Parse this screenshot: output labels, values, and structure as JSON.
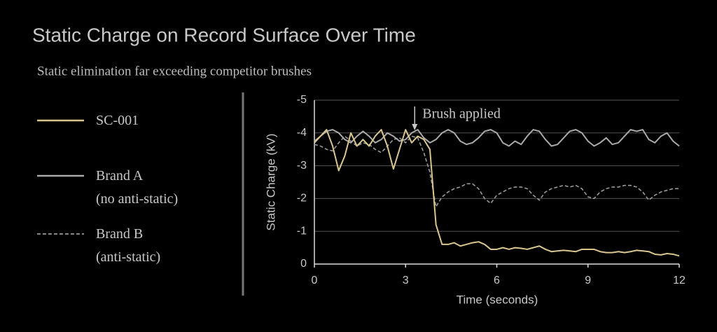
{
  "chart_data": {
    "type": "line",
    "title": "Static Charge on Record Surface Over Time",
    "subtitle": "Static elimination far exceeding competitor brushes",
    "x_label": "Time (seconds)",
    "y_label": "Static Charge (kV)",
    "x": [
      0,
      0.2,
      0.4,
      0.6,
      0.8,
      1,
      1.2,
      1.4,
      1.6,
      1.8,
      2,
      2.2,
      2.4,
      2.6,
      2.8,
      3,
      3.2,
      3.4,
      3.6,
      3.8,
      4,
      4.2,
      4.4,
      4.6,
      4.8,
      5,
      5.2,
      5.4,
      5.6,
      5.8,
      6,
      6.2,
      6.4,
      6.6,
      6.8,
      7,
      7.2,
      7.4,
      7.6,
      7.8,
      8,
      8.2,
      8.4,
      8.6,
      8.8,
      9,
      9.2,
      9.4,
      9.6,
      9.8,
      10,
      10.2,
      10.4,
      10.6,
      10.8,
      11,
      11.2,
      11.4,
      11.6,
      11.8,
      12
    ],
    "series": [
      {
        "name": "SC-001",
        "color": "#d9c68f",
        "line_style": "solid",
        "values": [
          -3.7,
          -3.9,
          -4.1,
          -3.6,
          -2.85,
          -3.3,
          -4.0,
          -3.6,
          -3.8,
          -3.6,
          -3.9,
          -4.1,
          -3.6,
          -2.9,
          -3.5,
          -4.1,
          -3.7,
          -3.9,
          -3.8,
          -3.5,
          -1.2,
          -0.6,
          -0.6,
          -0.65,
          -0.55,
          -0.6,
          -0.65,
          -0.68,
          -0.6,
          -0.45,
          -0.45,
          -0.5,
          -0.45,
          -0.5,
          -0.48,
          -0.45,
          -0.5,
          -0.55,
          -0.45,
          -0.38,
          -0.4,
          -0.42,
          -0.4,
          -0.38,
          -0.45,
          -0.45,
          -0.45,
          -0.38,
          -0.35,
          -0.35,
          -0.38,
          -0.35,
          -0.38,
          -0.42,
          -0.4,
          -0.38,
          -0.3,
          -0.28,
          -0.32,
          -0.3,
          -0.25
        ]
      },
      {
        "name": "Brand A\n(no anti-static)",
        "color": "#aaaaaa",
        "line_style": "solid",
        "values": [
          -3.75,
          -3.9,
          -4.05,
          -4.1,
          -4.0,
          -3.8,
          -3.7,
          -3.9,
          -4.05,
          -3.9,
          -3.7,
          -3.8,
          -4.0,
          -3.9,
          -3.75,
          -3.8,
          -4.0,
          -4.1,
          -3.85,
          -3.7,
          -3.8,
          -4.0,
          -4.1,
          -4.0,
          -3.75,
          -3.65,
          -3.7,
          -3.85,
          -4.05,
          -4.1,
          -4.0,
          -3.7,
          -3.6,
          -3.75,
          -3.65,
          -3.9,
          -4.1,
          -4.05,
          -3.8,
          -3.6,
          -3.65,
          -3.85,
          -4.05,
          -4.1,
          -4.0,
          -3.75,
          -3.6,
          -3.7,
          -3.85,
          -3.65,
          -3.7,
          -3.9,
          -4.1,
          -4.05,
          -4.1,
          -3.8,
          -3.7,
          -3.9,
          -4.0,
          -3.75,
          -3.6
        ]
      },
      {
        "name": "Brand B\n(anti-static)",
        "color": "#999999",
        "line_style": "dashed",
        "values": [
          -3.65,
          -3.6,
          -3.5,
          -3.45,
          -3.7,
          -3.9,
          -3.75,
          -3.6,
          -3.7,
          -3.65,
          -3.5,
          -3.4,
          -3.6,
          -3.8,
          -3.85,
          -3.7,
          -3.9,
          -3.85,
          -3.4,
          -2.8,
          -1.75,
          -2.05,
          -2.2,
          -2.3,
          -2.35,
          -2.45,
          -2.45,
          -2.3,
          -2.0,
          -1.85,
          -2.1,
          -2.2,
          -2.3,
          -2.35,
          -2.35,
          -2.3,
          -2.1,
          -1.95,
          -2.2,
          -2.3,
          -2.35,
          -2.4,
          -2.35,
          -2.4,
          -2.3,
          -2.05,
          -2.0,
          -2.2,
          -2.3,
          -2.35,
          -2.35,
          -2.4,
          -2.4,
          -2.35,
          -2.2,
          -1.95,
          -2.1,
          -2.2,
          -2.25,
          -2.3,
          -2.3
        ]
      }
    ],
    "annotation": {
      "text": "Brush applied",
      "x": 3.3
    },
    "xlim": [
      0,
      12
    ],
    "xticks": [
      0,
      3,
      6,
      9,
      12
    ],
    "ylim": [
      0,
      -5
    ],
    "yticks": [
      0,
      -1,
      -2,
      -3,
      -4,
      -5
    ],
    "grid": true,
    "legend": "left"
  }
}
